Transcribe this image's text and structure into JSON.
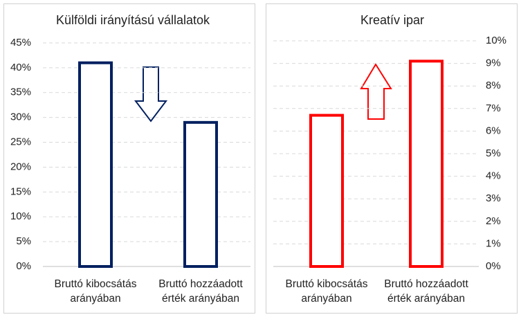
{
  "chart_data": [
    {
      "type": "bar",
      "title": "Külföldi irányítású vállalatok",
      "categories": [
        "Bruttó kibocsátás arányában",
        "Bruttó hozzáadott érték arányában"
      ],
      "values": [
        41,
        29
      ],
      "color": "#002060",
      "ylim": [
        0,
        45
      ],
      "yticks": [
        {
          "value": 0,
          "label": "0%"
        },
        {
          "value": 5,
          "label": "5%"
        },
        {
          "value": 10,
          "label": "10%"
        },
        {
          "value": 15,
          "label": "15%"
        },
        {
          "value": 20,
          "label": "20%"
        },
        {
          "value": 25,
          "label": "25%"
        },
        {
          "value": 30,
          "label": "30%"
        },
        {
          "value": 35,
          "label": "35%"
        },
        {
          "value": 40,
          "label": "40%"
        },
        {
          "value": 45,
          "label": "45%"
        }
      ],
      "grid": true,
      "y_axis_side": "left"
    },
    {
      "type": "bar",
      "title": "Kreatív ipar",
      "categories": [
        "Bruttó kibocsátás arányában",
        "Bruttó hozzáadott érték arányában"
      ],
      "values": [
        6.7,
        9.1
      ],
      "color": "#ff0000",
      "ylim": [
        0,
        10
      ],
      "yticks": [
        {
          "value": 0,
          "label": "0%"
        },
        {
          "value": 1,
          "label": "1%"
        },
        {
          "value": 2,
          "label": "2%"
        },
        {
          "value": 3,
          "label": "3%"
        },
        {
          "value": 4,
          "label": "4%"
        },
        {
          "value": 5,
          "label": "5%"
        },
        {
          "value": 6,
          "label": "6%"
        },
        {
          "value": 7,
          "label": "7%"
        },
        {
          "value": 8,
          "label": "8%"
        },
        {
          "value": 9,
          "label": "9%"
        },
        {
          "value": 10,
          "label": "10%"
        }
      ],
      "grid": true,
      "y_axis_side": "right"
    }
  ]
}
